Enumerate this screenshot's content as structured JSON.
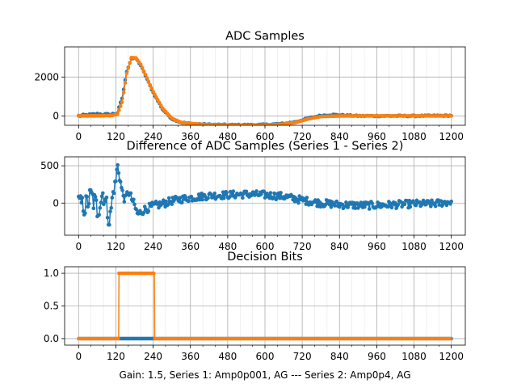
{
  "chart_data": [
    {
      "type": "line",
      "title": "ADC Samples",
      "xlabel": "",
      "ylabel": "",
      "xlim": [
        -45,
        1245
      ],
      "ylim": [
        -480,
        3550
      ],
      "grid": true,
      "xticks": [
        0,
        120,
        240,
        360,
        480,
        600,
        720,
        840,
        960,
        1080,
        1200
      ],
      "yticks": [
        0,
        2000
      ],
      "series": [
        {
          "color": "#1f77b4",
          "x": [
            0,
            30,
            60,
            100,
            125,
            140,
            155,
            170,
            185,
            200,
            220,
            240,
            270,
            300,
            330,
            360,
            420,
            480,
            540,
            600,
            660,
            700,
            740,
            780,
            820,
            860,
            900,
            960,
            1020,
            1080,
            1140,
            1200
          ],
          "y": [
            0,
            40,
            90,
            60,
            150,
            900,
            2300,
            2950,
            2950,
            2600,
            1900,
            1200,
            350,
            -150,
            -330,
            -400,
            -440,
            -460,
            -460,
            -450,
            -400,
            -300,
            -120,
            20,
            60,
            30,
            0,
            0,
            0,
            0,
            10,
            20
          ]
        },
        {
          "color": "#ff7f0e",
          "x": [
            0,
            40,
            80,
            110,
            125,
            140,
            155,
            170,
            185,
            200,
            220,
            240,
            270,
            300,
            330,
            360,
            420,
            480,
            540,
            600,
            660,
            700,
            740,
            780,
            820,
            860,
            900,
            960,
            1020,
            1080,
            1140,
            1200
          ],
          "y": [
            0,
            5,
            10,
            30,
            100,
            700,
            2200,
            3000,
            2980,
            2650,
            1950,
            1250,
            400,
            -120,
            -330,
            -400,
            -450,
            -470,
            -480,
            -470,
            -420,
            -330,
            -150,
            -30,
            -10,
            0,
            0,
            0,
            0,
            0,
            0,
            0
          ]
        }
      ]
    },
    {
      "type": "line",
      "title": "Difference of ADC Samples (Series 1 - Series 2)",
      "xlabel": "",
      "ylabel": "",
      "xlim": [
        -45,
        1245
      ],
      "ylim": [
        -430,
        620
      ],
      "grid": true,
      "xticks": [
        0,
        120,
        240,
        360,
        480,
        600,
        720,
        840,
        960,
        1080,
        1200
      ],
      "yticks": [
        0,
        500
      ],
      "series": [
        {
          "color": "#1f77b4",
          "x": [
            0,
            20,
            40,
            60,
            80,
            100,
            110,
            120,
            125,
            130,
            140,
            150,
            160,
            175,
            190,
            210,
            240,
            270,
            300,
            340,
            380,
            420,
            480,
            540,
            600,
            660,
            720,
            780,
            840,
            900,
            960,
            1020,
            1080,
            1140,
            1200
          ],
          "y": [
            50,
            -60,
            100,
            -80,
            160,
            -250,
            120,
            300,
            520,
            400,
            150,
            40,
            160,
            20,
            -150,
            -90,
            -40,
            -10,
            30,
            60,
            80,
            100,
            110,
            120,
            110,
            90,
            40,
            0,
            -20,
            -30,
            -30,
            -20,
            -10,
            -10,
            20
          ],
          "noise": [
            60,
            150,
            150,
            180,
            180,
            120,
            90,
            60,
            60,
            60,
            60,
            60,
            60,
            55,
            55,
            55,
            55,
            55,
            50,
            50,
            50,
            50,
            50,
            50,
            50,
            50,
            50,
            50,
            50,
            50,
            50,
            50,
            50,
            50,
            50
          ]
        }
      ]
    },
    {
      "type": "line",
      "title": "Decision Bits",
      "xlabel": "",
      "ylabel": "",
      "xlim": [
        -45,
        1245
      ],
      "ylim": [
        -0.1,
        1.1
      ],
      "grid": true,
      "xticks": [
        0,
        120,
        240,
        360,
        480,
        600,
        720,
        840,
        960,
        1080,
        1200
      ],
      "yticks": [
        0.0,
        0.5,
        1.0
      ],
      "series": [
        {
          "color": "#1f77b4",
          "x": [
            0,
            1200
          ],
          "y": [
            0,
            0
          ]
        },
        {
          "color": "#ff7f0e",
          "x": [
            0,
            129,
            130,
            244,
            245,
            1200
          ],
          "y": [
            0,
            0,
            1,
            1,
            0,
            0
          ]
        }
      ]
    }
  ],
  "footer": "Gain: 1.5, Series 1: Amp0p001, AG --- Series 2: Amp0p4, AG",
  "tick_labels": {
    "x": [
      "0",
      "120",
      "240",
      "360",
      "480",
      "600",
      "720",
      "840",
      "960",
      "1080",
      "1200"
    ],
    "y1": [
      "0",
      "2000"
    ],
    "y2": [
      "0",
      "500"
    ],
    "y3": [
      "0.0",
      "0.5",
      "1.0"
    ]
  }
}
